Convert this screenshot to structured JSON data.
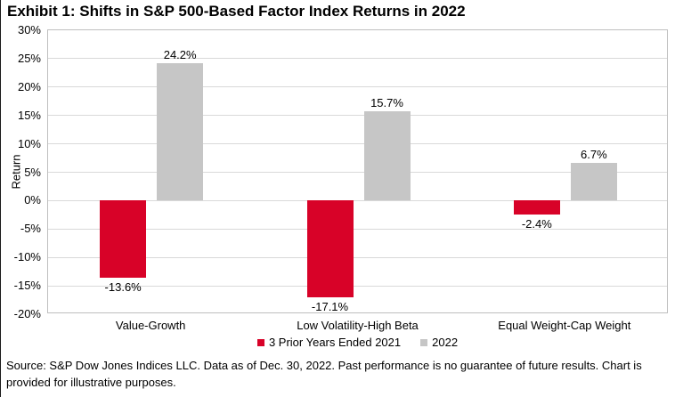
{
  "title": "Exhibit 1: Shifts in S&P 500-Based Factor Index Returns in 2022",
  "footer": "Source: S&P Dow Jones Indices LLC. Data as of Dec. 30, 2022. Past performance is no guarantee of future results. Chart is provided for illustrative purposes.",
  "colors": {
    "series_red": "#D80228",
    "series_gray": "#C6C6C6",
    "gridline": "#D9D9D9",
    "plot_border": "#BFBFBF"
  },
  "chart_data": {
    "type": "bar",
    "title": "Exhibit 1: Shifts in S&P 500-Based Factor Index Returns in 2022",
    "xlabel": "",
    "ylabel": "Return",
    "ylim": [
      -20,
      30
    ],
    "y_tick_step": 5,
    "y_tick_labels": [
      "30%",
      "25%",
      "20%",
      "15%",
      "10%",
      "5%",
      "0%",
      "-5%",
      "-10%",
      "-15%",
      "-20%"
    ],
    "grid": true,
    "legend_position": "bottom",
    "categories": [
      "Value-Growth",
      "Low Volatility-High Beta",
      "Equal Weight-Cap Weight"
    ],
    "series": [
      {
        "name": "3 Prior Years Ended 2021",
        "color": "#D80228",
        "values": [
          -13.6,
          -17.1,
          -2.4
        ],
        "labels": [
          "-13.6%",
          "-17.1%",
          "-2.4%"
        ]
      },
      {
        "name": "2022",
        "color": "#C6C6C6",
        "values": [
          24.2,
          15.7,
          6.7
        ],
        "labels": [
          "24.2%",
          "15.7%",
          "6.7%"
        ]
      }
    ]
  }
}
